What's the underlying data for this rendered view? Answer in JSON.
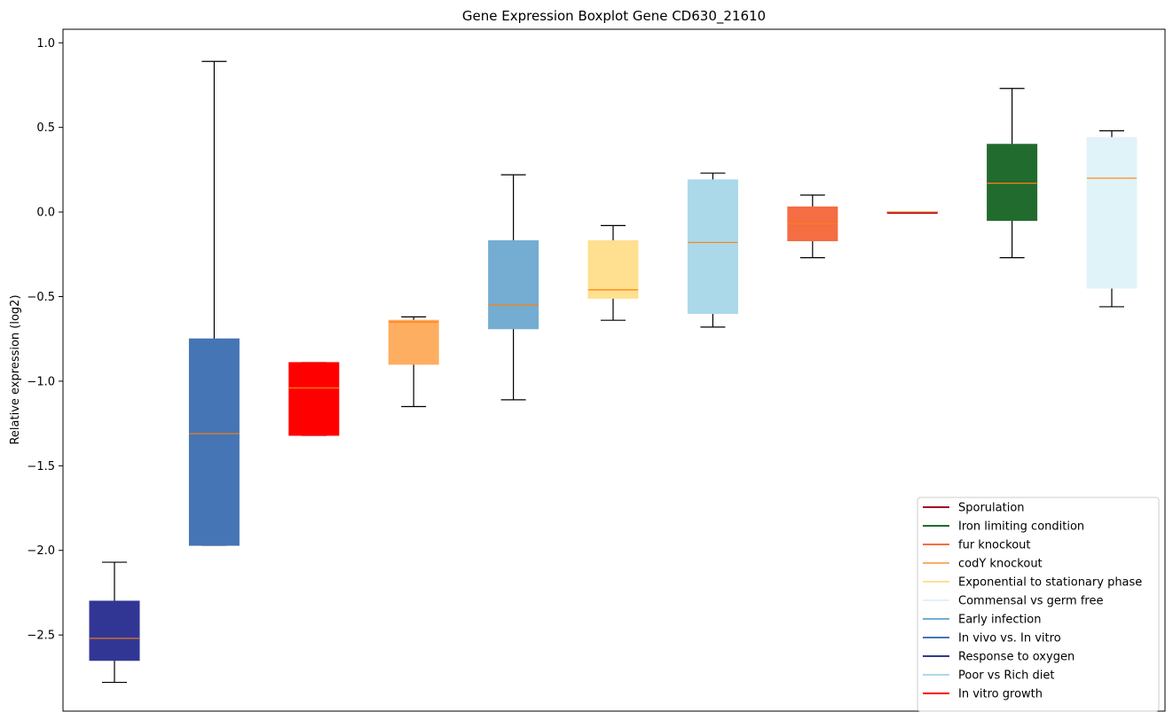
{
  "chart_data": {
    "type": "boxplot",
    "title": "Gene Expression Boxplot Gene CD630_21610",
    "xlabel": "",
    "ylabel": "Relative expression (log2)",
    "ylim": [
      -2.95,
      1.08
    ],
    "yticks": [
      1.0,
      0.5,
      0.0,
      -0.5,
      -1.0,
      -1.5,
      -2.0,
      -2.5
    ],
    "ytick_labels": [
      "1.0",
      "0.5",
      "0.0",
      "−0.5",
      "−1.0",
      "−1.5",
      "−2.0",
      "−2.5"
    ],
    "median_color": "#ff7f0e",
    "boxes": [
      {
        "condition": "Response to oxygen",
        "color": "#313695",
        "whislo": -2.78,
        "q1": -2.65,
        "med": -2.52,
        "q3": -2.3,
        "whishi": -2.07
      },
      {
        "condition": "In vivo vs. In vitro",
        "color": "#4575b4",
        "whislo": -1.97,
        "q1": -1.97,
        "med": -1.31,
        "q3": -0.75,
        "whishi": 0.89
      },
      {
        "condition": "In vitro growth",
        "color": "#ff0000",
        "whislo": -1.32,
        "q1": -1.32,
        "med": -1.04,
        "q3": -0.89,
        "whishi": -0.89
      },
      {
        "condition": "codY knockout",
        "color": "#fdae61",
        "whislo": -1.15,
        "q1": -0.9,
        "med": -0.65,
        "q3": -0.64,
        "whishi": -0.62
      },
      {
        "condition": "Early infection",
        "color": "#74add1",
        "whislo": -1.11,
        "q1": -0.69,
        "med": -0.55,
        "q3": -0.17,
        "whishi": 0.22
      },
      {
        "condition": "Exponential to stationary phase",
        "color": "#fee090",
        "whislo": -0.64,
        "q1": -0.51,
        "med": -0.46,
        "q3": -0.17,
        "whishi": -0.08
      },
      {
        "condition": "Poor vs Rich diet",
        "color": "#abd9e9",
        "whislo": -0.68,
        "q1": -0.6,
        "med": -0.18,
        "q3": 0.19,
        "whishi": 0.23
      },
      {
        "condition": "fur knockout",
        "color": "#f46d43",
        "whislo": -0.27,
        "q1": -0.17,
        "med": -0.07,
        "q3": 0.03,
        "whishi": 0.1
      },
      {
        "condition": "Sporulation",
        "color": "#a50026",
        "whislo": 0.0,
        "q1": 0.0,
        "med": 0.0,
        "q3": 0.0,
        "whishi": 0.0
      },
      {
        "condition": "Iron limiting condition",
        "color": "#226b2e",
        "whislo": -0.27,
        "q1": -0.05,
        "med": 0.17,
        "q3": 0.4,
        "whishi": 0.73
      },
      {
        "condition": "Commensal vs germ free",
        "color": "#e0f3f8",
        "whislo": -0.56,
        "q1": -0.45,
        "med": 0.2,
        "q3": 0.44,
        "whishi": 0.48
      }
    ],
    "legend": {
      "placement": "lower-right",
      "entries": [
        {
          "label": "Sporulation",
          "color": "#a50026"
        },
        {
          "label": "Iron limiting condition",
          "color": "#226b2e"
        },
        {
          "label": "fur knockout",
          "color": "#f46d43"
        },
        {
          "label": "codY knockout",
          "color": "#fdae61"
        },
        {
          "label": "Exponential to stationary phase",
          "color": "#fee090"
        },
        {
          "label": "Commensal vs germ free",
          "color": "#e0f3f8"
        },
        {
          "label": "Early infection",
          "color": "#74add1"
        },
        {
          "label": "In vivo vs. In vitro",
          "color": "#4575b4"
        },
        {
          "label": "Response to oxygen",
          "color": "#313695"
        },
        {
          "label": "Poor vs Rich diet",
          "color": "#abd9e9"
        },
        {
          "label": "In vitro growth",
          "color": "#ff0000"
        }
      ]
    }
  }
}
